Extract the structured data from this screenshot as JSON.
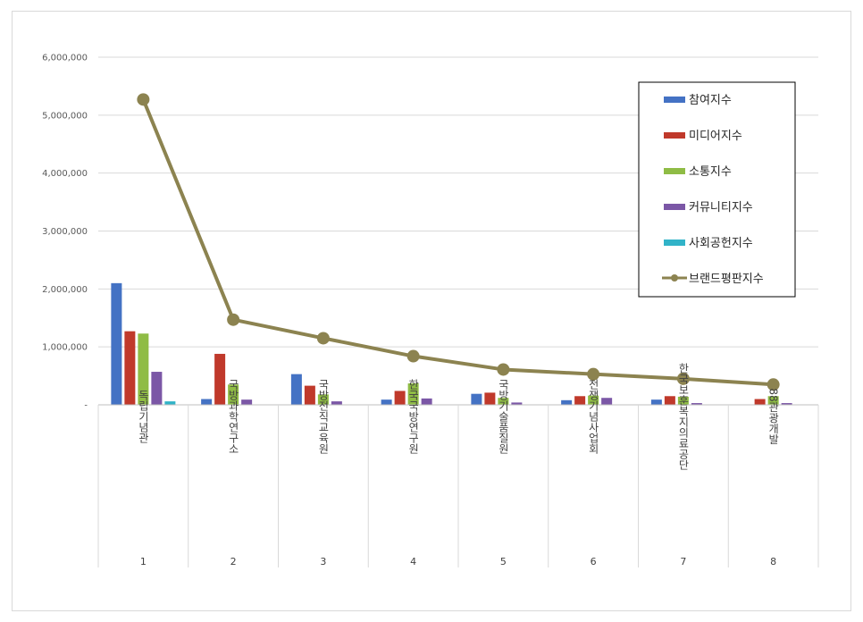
{
  "chart_data": {
    "type": "bar",
    "categories": [
      "독립기념관",
      "국방과학연구소",
      "국방전직교육원",
      "한국국방연구원",
      "국방기술품질원",
      "전쟁기념사업회",
      "한국보훈복지의료공단",
      "88관광개발"
    ],
    "ranks": [
      "1",
      "2",
      "3",
      "4",
      "5",
      "6",
      "7",
      "8"
    ],
    "ylim": [
      0,
      6000000
    ],
    "yticks": [
      0,
      1000000,
      2000000,
      3000000,
      4000000,
      5000000,
      6000000
    ],
    "ytick_labels": [
      "-",
      "1,000,000",
      "2,000,000",
      "3,000,000",
      "4,000,000",
      "5,000,000",
      "6,000,000"
    ],
    "grid": true,
    "legend_position": "top-right",
    "series": [
      {
        "name": "참여지수",
        "type": "bar",
        "color": "#4472c4",
        "values": [
          2100000,
          100000,
          530000,
          90000,
          190000,
          80000,
          90000,
          0
        ]
      },
      {
        "name": "미디어지수",
        "type": "bar",
        "color": "#c0392b",
        "values": [
          1270000,
          880000,
          330000,
          240000,
          210000,
          150000,
          150000,
          100000
        ]
      },
      {
        "name": "소통지수",
        "type": "bar",
        "color": "#8fbc45",
        "values": [
          1230000,
          350000,
          180000,
          370000,
          120000,
          160000,
          140000,
          150000
        ]
      },
      {
        "name": "커뮤니티지수",
        "type": "bar",
        "color": "#7b57a6",
        "values": [
          570000,
          90000,
          60000,
          110000,
          40000,
          120000,
          30000,
          30000
        ]
      },
      {
        "name": "사회공헌지수",
        "type": "bar",
        "color": "#31b3c8",
        "values": [
          60000,
          0,
          0,
          0,
          0,
          0,
          0,
          0
        ]
      },
      {
        "name": "브랜드평판지수",
        "type": "line",
        "color": "#8c8350",
        "values": [
          5270000,
          1470000,
          1150000,
          840000,
          610000,
          530000,
          450000,
          350000
        ]
      }
    ]
  }
}
